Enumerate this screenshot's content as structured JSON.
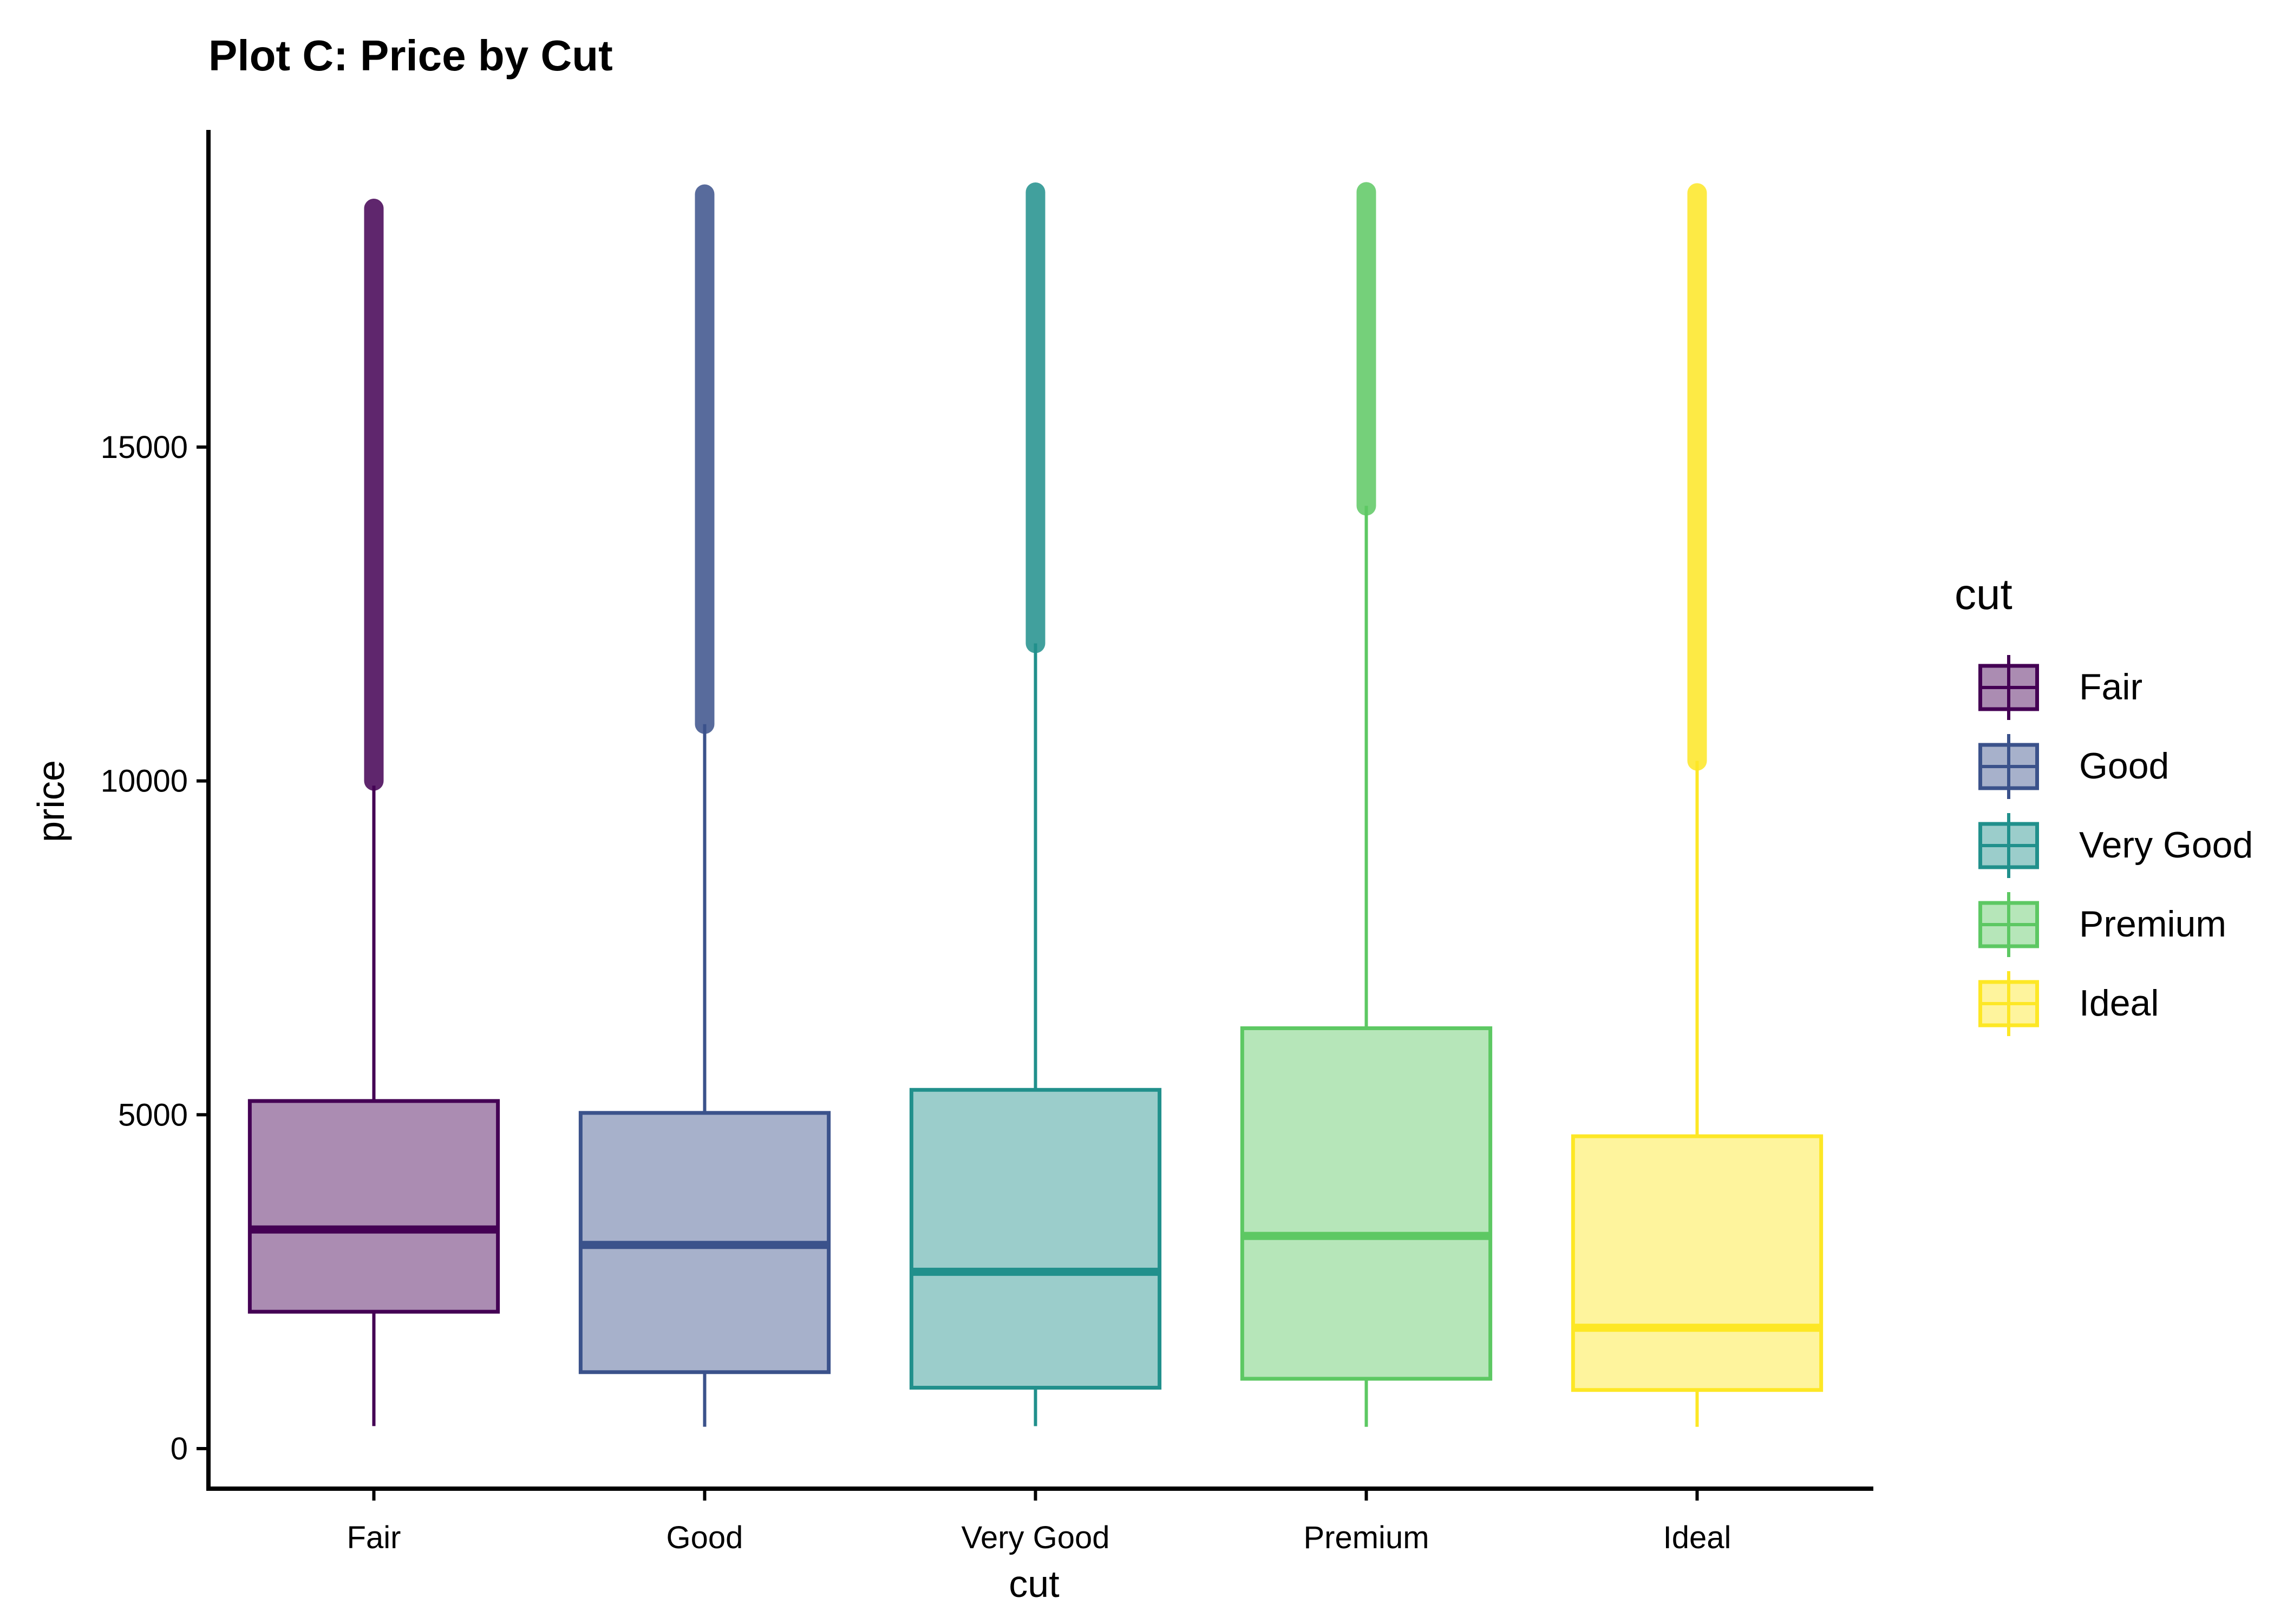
{
  "chart_data": {
    "type": "box",
    "title": "Plot C: Price by Cut",
    "xlabel": "cut",
    "ylabel": "price",
    "categories": [
      "Fair",
      "Good",
      "Very Good",
      "Premium",
      "Ideal"
    ],
    "y_ticks": [
      0,
      5000,
      10000,
      15000
    ],
    "y_tick_labels": [
      "0",
      "5000",
      "10000",
      "15000"
    ],
    "ylim": [
      -600,
      19750
    ],
    "grid": false,
    "legend": {
      "title": "cut",
      "position": "right",
      "entries": [
        "Fair",
        "Good",
        "Very Good",
        "Premium",
        "Ideal"
      ]
    },
    "colors": [
      "#440154",
      "#3b528b",
      "#21908c",
      "#5dc863",
      "#fde725"
    ],
    "boxes": [
      {
        "category": "Fair",
        "whisker_low": 337,
        "q1": 2050,
        "median": 3282,
        "q3": 5206,
        "whisker_high": 9930,
        "outlier_low": 10000,
        "outlier_high": 18574
      },
      {
        "category": "Good",
        "whisker_low": 327,
        "q1": 1145,
        "median": 3050,
        "q3": 5028,
        "whisker_high": 10850,
        "outlier_low": 10850,
        "outlier_high": 18788
      },
      {
        "category": "Very Good",
        "whisker_low": 336,
        "q1": 912,
        "median": 2648,
        "q3": 5373,
        "whisker_high": 12060,
        "outlier_low": 12060,
        "outlier_high": 18818
      },
      {
        "category": "Premium",
        "whisker_low": 326,
        "q1": 1046,
        "median": 3185,
        "q3": 6296,
        "whisker_high": 14120,
        "outlier_low": 14120,
        "outlier_high": 18823
      },
      {
        "category": "Ideal",
        "whisker_low": 326,
        "q1": 878,
        "median": 1810,
        "q3": 4678,
        "whisker_high": 10300,
        "outlier_low": 10300,
        "outlier_high": 18806
      }
    ]
  }
}
